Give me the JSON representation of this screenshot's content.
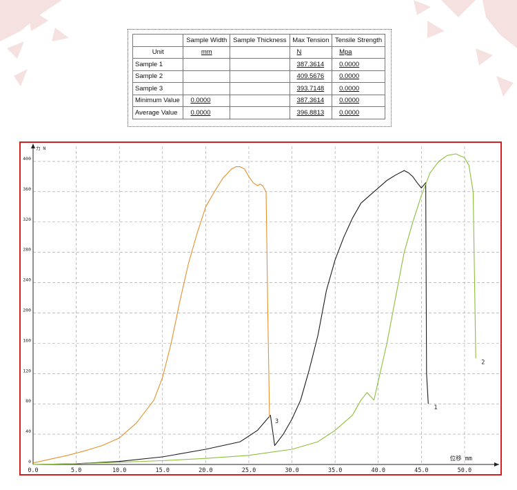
{
  "table": {
    "headers": [
      "",
      "Sample Width",
      "Sample Thickness",
      "Max Tension",
      "Tensile Strength"
    ],
    "units": [
      "Unit",
      "mm",
      "",
      "N",
      "Mpa"
    ],
    "rows": [
      [
        "Sample 1",
        "",
        "",
        "387.3614",
        "0.0000"
      ],
      [
        "Sample 2",
        "",
        "",
        "409.5676",
        "0.0000"
      ],
      [
        "Sample 3",
        "",
        "",
        "393.7148",
        "0.0000"
      ],
      [
        "Minimum Value",
        "0.0000",
        "",
        "387.3614",
        "0.0000"
      ],
      [
        "Average Value",
        "0.0000",
        "",
        "396.8813",
        "0.0000"
      ]
    ]
  },
  "chart_data": {
    "type": "line",
    "xlabel": "位移 mm",
    "ylabel": "力 N",
    "xlim": [
      0,
      54
    ],
    "ylim": [
      0,
      420
    ],
    "xticks": [
      "0.0",
      "5.0",
      "10.0",
      "15.0",
      "20.0",
      "25.0",
      "30.0",
      "35.0",
      "40.0",
      "45.0",
      "50.0"
    ],
    "yticks": [
      "0",
      "40",
      "80",
      "120",
      "160",
      "200",
      "240",
      "280",
      "320",
      "360",
      "400"
    ],
    "grid": true,
    "series": [
      {
        "name": "1",
        "color": "#1a1a1a",
        "x": [
          0,
          5,
          10,
          15,
          20,
          24,
          26,
          27.5,
          28,
          29,
          30,
          31,
          32,
          33,
          34,
          35,
          36,
          37,
          38,
          39,
          40,
          41,
          42,
          43,
          43.5,
          44,
          44.5,
          45,
          45.5,
          45.6,
          45.8
        ],
        "y": [
          0,
          1,
          4,
          10,
          20,
          30,
          45,
          65,
          25,
          40,
          60,
          85,
          125,
          170,
          230,
          270,
          300,
          325,
          345,
          355,
          365,
          375,
          382,
          388,
          385,
          380,
          372,
          365,
          372,
          120,
          80
        ]
      },
      {
        "name": "2",
        "color": "#8cbf3a",
        "x": [
          0,
          5,
          10,
          15,
          20,
          25,
          30,
          33,
          35,
          37,
          38,
          38.7,
          39.5,
          40,
          41,
          42,
          43,
          44,
          45,
          46,
          47,
          48,
          49,
          50,
          50.5,
          51,
          51.3
        ],
        "y": [
          0,
          1,
          3,
          5,
          8,
          12,
          20,
          30,
          45,
          65,
          85,
          95,
          85,
          110,
          160,
          220,
          280,
          320,
          355,
          385,
          400,
          408,
          410,
          405,
          395,
          360,
          140
        ]
      },
      {
        "name": "3",
        "color": "#e6902e",
        "x": [
          0,
          2,
          4,
          6,
          8,
          10,
          12,
          14,
          15,
          16,
          17,
          18,
          19,
          20,
          21,
          22,
          23,
          23.5,
          24,
          24.5,
          25,
          25.5,
          26,
          26.3,
          26.6,
          27,
          27.2,
          27.4
        ],
        "y": [
          2,
          7,
          12,
          18,
          25,
          35,
          55,
          85,
          115,
          160,
          215,
          265,
          305,
          340,
          360,
          378,
          390,
          393,
          393,
          390,
          380,
          372,
          368,
          370,
          368,
          360,
          200,
          62
        ]
      }
    ]
  }
}
